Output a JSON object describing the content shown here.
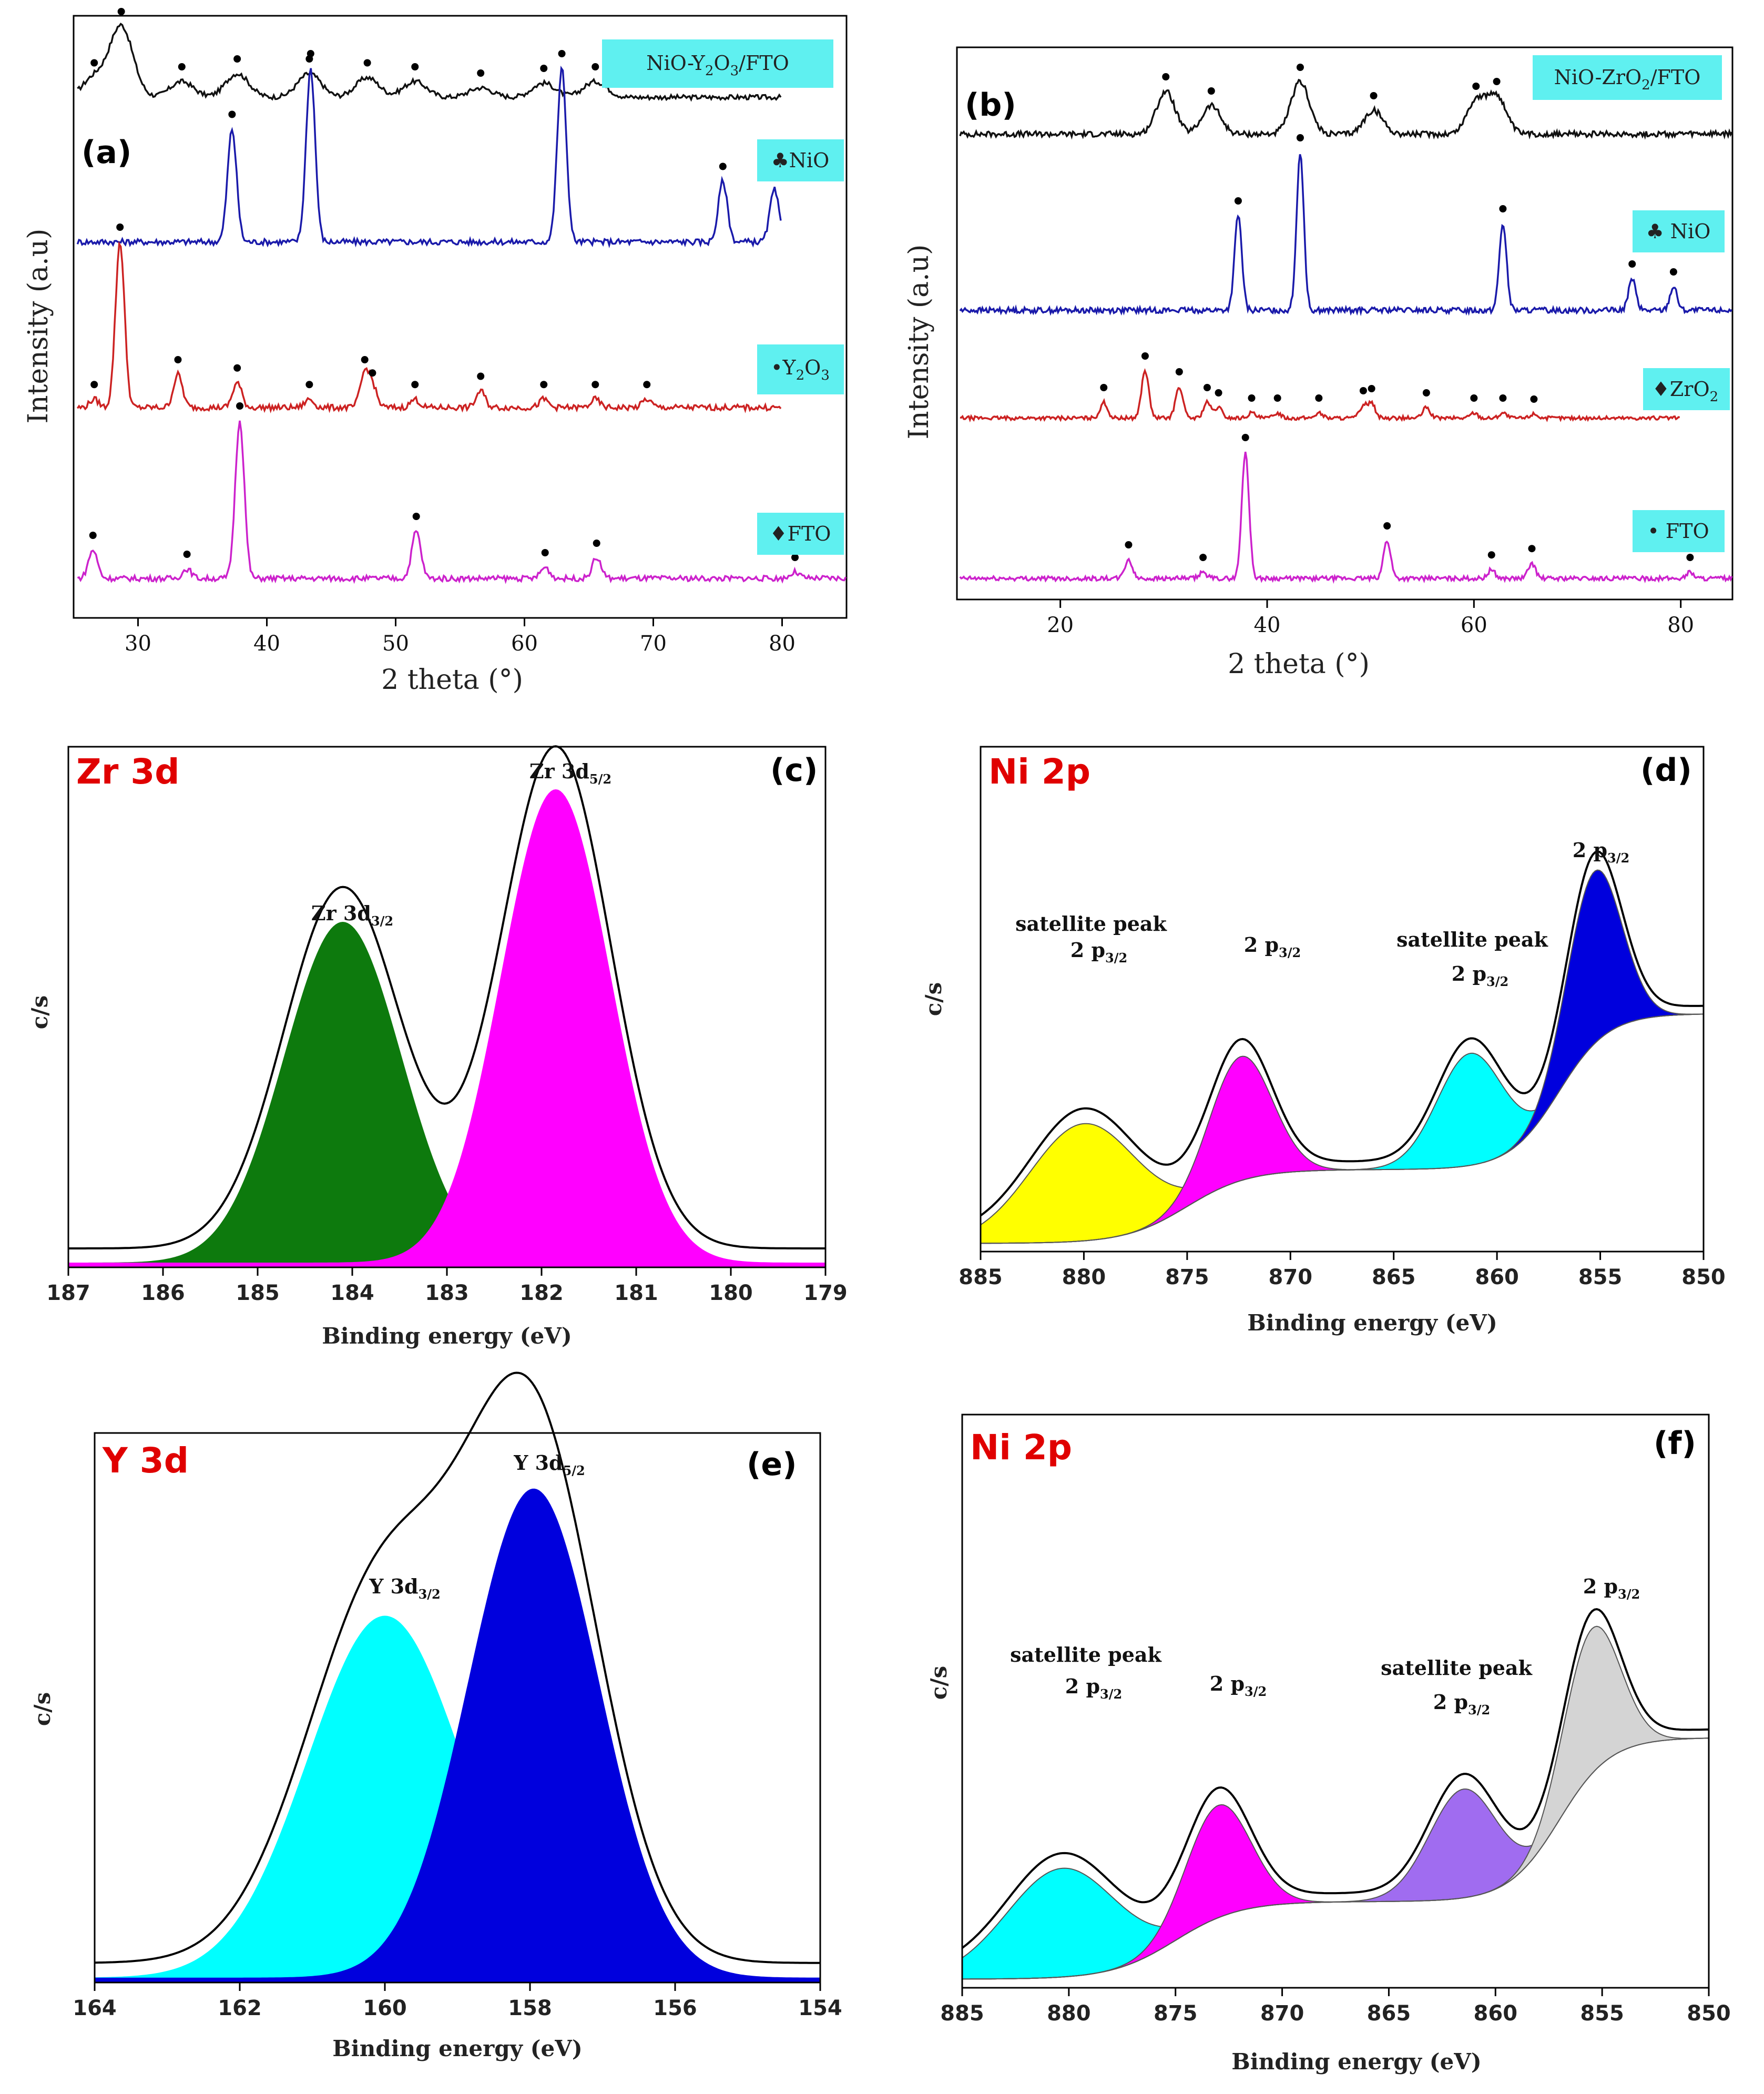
{
  "figure_panels": [
    "(a)",
    "(b)",
    "(c)",
    "(d)",
    "(e)",
    "(f)"
  ],
  "chart_data": [
    {
      "id": "a",
      "type": "line",
      "panel_label": "(a)",
      "xlabel": "2 theta  (°)",
      "ylabel": "Intensity (a.u)",
      "xlim": [
        25,
        85
      ],
      "xticks": [
        30,
        40,
        50,
        60,
        70,
        80
      ],
      "series": [
        {
          "name": "NiO-Y2O3/FTO",
          "color": "#111111",
          "peaks": [
            [
              26.6,
              0.25
            ],
            [
              28.7,
              0.9
            ],
            [
              33.4,
              0.2
            ],
            [
              37.7,
              0.3
            ],
            [
              43.3,
              0.3
            ],
            [
              47.8,
              0.25
            ],
            [
              51.5,
              0.2
            ],
            [
              56.6,
              0.12
            ],
            [
              61.5,
              0.18
            ],
            [
              65.5,
              0.2
            ]
          ]
        },
        {
          "name": "NiO",
          "color": "#1a1aaa",
          "peaks": [
            [
              37.3,
              0.65
            ],
            [
              43.4,
              1.0
            ],
            [
              62.9,
              1.0
            ],
            [
              75.4,
              0.35
            ],
            [
              79.4,
              0.3
            ]
          ]
        },
        {
          "name": "Y2O3",
          "color": "#cc2222",
          "peaks": [
            [
              26.6,
              0.05
            ],
            [
              28.6,
              1.0
            ],
            [
              33.1,
              0.2
            ],
            [
              37.7,
              0.15
            ],
            [
              43.3,
              0.05
            ],
            [
              47.6,
              0.2
            ],
            [
              48.2,
              0.12
            ],
            [
              51.5,
              0.05
            ],
            [
              56.6,
              0.1
            ],
            [
              61.5,
              0.05
            ],
            [
              65.5,
              0.05
            ],
            [
              69.5,
              0.05
            ]
          ]
        },
        {
          "name": "FTO",
          "color": "#cc22cc",
          "peaks": [
            [
              26.5,
              0.18
            ],
            [
              33.8,
              0.06
            ],
            [
              37.9,
              1.0
            ],
            [
              51.6,
              0.3
            ],
            [
              61.6,
              0.07
            ],
            [
              65.6,
              0.13
            ],
            [
              81.0,
              0.04
            ]
          ]
        }
      ],
      "legend": {
        "s1": "NiO-Y",
        "s1b": "O",
        "s1c": "/FTO",
        "s2": "♣NiO",
        "s3a": "•Y",
        "s3b": "O",
        "s4": "♦FTO",
        "sub2": "2",
        "sub3": "3"
      }
    },
    {
      "id": "b",
      "type": "line",
      "panel_label": "(b)",
      "xlabel": "2 theta (°)",
      "ylabel": "Intensity (a.u)",
      "xlim": [
        10,
        85
      ],
      "xticks": [
        20,
        40,
        60,
        80
      ],
      "series": [
        {
          "name": "NiO-ZrO2/FTO",
          "color": "#111111",
          "peaks": [
            [
              30.2,
              0.45
            ],
            [
              34.6,
              0.3
            ],
            [
              43.2,
              0.55
            ],
            [
              50.3,
              0.25
            ],
            [
              60.2,
              0.35
            ],
            [
              62.2,
              0.4
            ]
          ]
        },
        {
          "name": "NiO",
          "color": "#1a1aaa",
          "peaks": [
            [
              37.2,
              0.6
            ],
            [
              43.2,
              1.0
            ],
            [
              62.8,
              0.55
            ],
            [
              75.3,
              0.2
            ],
            [
              79.3,
              0.15
            ]
          ]
        },
        {
          "name": "ZrO2",
          "color": "#cc2222",
          "peaks": [
            [
              24.2,
              0.15
            ],
            [
              28.2,
              0.45
            ],
            [
              31.5,
              0.3
            ],
            [
              34.2,
              0.15
            ],
            [
              35.3,
              0.1
            ],
            [
              38.5,
              0.05
            ],
            [
              41.0,
              0.05
            ],
            [
              45.0,
              0.05
            ],
            [
              49.3,
              0.12
            ],
            [
              50.1,
              0.14
            ],
            [
              55.4,
              0.1
            ],
            [
              60.0,
              0.05
            ],
            [
              62.8,
              0.05
            ],
            [
              65.8,
              0.04
            ]
          ]
        },
        {
          "name": "FTO",
          "color": "#cc22cc",
          "peaks": [
            [
              26.6,
              0.15
            ],
            [
              33.8,
              0.05
            ],
            [
              37.9,
              1.0
            ],
            [
              51.6,
              0.3
            ],
            [
              61.7,
              0.07
            ],
            [
              65.6,
              0.12
            ],
            [
              80.9,
              0.05
            ]
          ]
        }
      ],
      "legend": {
        "s1a": "NiO-ZrO",
        "s1b": "/FTO",
        "s2": "♣ NiO",
        "s3a": "♦ZrO",
        "s4": "• FTO",
        "sub": "2"
      }
    },
    {
      "id": "c",
      "type": "area",
      "panel_label": "(c)",
      "title": "Zr 3d",
      "xlabel": "Binding energy (eV)",
      "ylabel": "c/s",
      "xlim": [
        187,
        179
      ],
      "xticks": [
        187,
        186,
        185,
        184,
        183,
        182,
        181,
        180,
        179
      ],
      "components": [
        {
          "name": "Zr 3d3/2",
          "center": 184.1,
          "height": 0.72,
          "width": 0.62,
          "color": "#0d7a0d"
        },
        {
          "name": "Zr 3d5/2",
          "center": 181.85,
          "height": 1.0,
          "width": 0.58,
          "color": "#ff00ff"
        }
      ],
      "labels": {
        "p1": "Zr 3d",
        "p1sub": "3/2",
        "p2": "Zr 3d",
        "p2sub": "5/2"
      }
    },
    {
      "id": "d",
      "type": "area",
      "panel_label": "(d)",
      "title": "Ni 2p",
      "xlabel": "Binding energy (eV)",
      "ylabel": "c/s",
      "xlim": [
        885,
        850
      ],
      "xticks": [
        885,
        880,
        875,
        870,
        865,
        860,
        855,
        850
      ],
      "components": [
        {
          "name": "satellite 2p3/2",
          "center": 880.0,
          "height": 0.68,
          "color": "#ffff00"
        },
        {
          "name": "2p3/2",
          "center": 872.4,
          "height": 0.72,
          "color": "#ff00ff"
        },
        {
          "name": "satellite 2p3/2 (2)",
          "center": 861.3,
          "height": 0.65,
          "color": "#00ffff"
        },
        {
          "name": "2p3/2 (main)",
          "center": 855.3,
          "height": 1.0,
          "color": "#0000dd"
        }
      ],
      "labels": {
        "sat1": "satellite peak",
        "sat1b": "2 p",
        "p2": "2 p",
        "sat2": "satellite peak",
        "sat2b": "2 p",
        "p4": "2 p",
        "sub": "3/2"
      }
    },
    {
      "id": "e",
      "type": "area",
      "panel_label": "(e)",
      "title": "Y 3d",
      "xlabel": "Binding energy (eV)",
      "ylabel": "c/s",
      "xlim": [
        164,
        154
      ],
      "xticks": [
        164,
        162,
        160,
        158,
        156,
        154
      ],
      "components": [
        {
          "name": "Y 3d3/2",
          "center": 160.0,
          "height": 0.74,
          "width": 0.85,
          "color": "#00ffff"
        },
        {
          "name": "Y 3d5/2",
          "center": 157.95,
          "height": 1.0,
          "width": 0.72,
          "color": "#0000dd"
        }
      ],
      "labels": {
        "p1": "Y 3d",
        "p1sub": "3/2",
        "p2": "Y 3d",
        "p2sub": "5/2"
      }
    },
    {
      "id": "f",
      "type": "area",
      "panel_label": "(f)",
      "title": "Ni 2p",
      "xlabel": "Binding energy (eV)",
      "ylabel": "c/s",
      "xlim": [
        885,
        850
      ],
      "xticks": [
        885,
        880,
        875,
        870,
        865,
        860,
        855,
        850
      ],
      "components": [
        {
          "name": "satellite 2p3/2",
          "center": 880.3,
          "height": 0.6,
          "color": "#00ffff"
        },
        {
          "name": "2p3/2",
          "center": 873.0,
          "height": 0.62,
          "color": "#ff00ff"
        },
        {
          "name": "satellite 2p3/2 (2)",
          "center": 861.5,
          "height": 0.6,
          "color": "#a06cf0"
        },
        {
          "name": "2p3/2 (main)",
          "center": 855.5,
          "height": 0.8,
          "color": "#d4d4d4"
        }
      ],
      "labels": {
        "sat1": "satellite peak",
        "sat1b": "2 p",
        "p2": "2 p",
        "sat2": "satellite peak",
        "sat2b": "2 p",
        "p4": "2 p",
        "sub": "3/2"
      }
    }
  ]
}
